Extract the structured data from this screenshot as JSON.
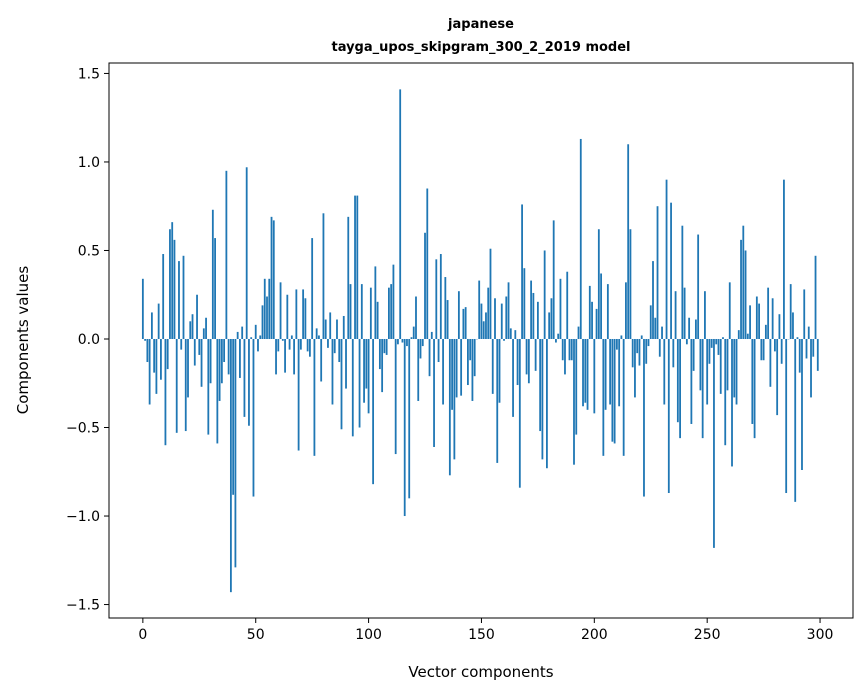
{
  "chart_data": {
    "type": "bar",
    "title": "japanese",
    "subtitle": "tayga_upos_skipgram_300_2_2019 model",
    "xlabel": "Vector components",
    "ylabel": "Components values",
    "xlim": [
      -15,
      314.6
    ],
    "ylim": [
      -1.576,
      1.559
    ],
    "xticks": [
      0,
      50,
      100,
      150,
      200,
      250,
      300
    ],
    "xtick_labels": [
      "0",
      "50",
      "100",
      "150",
      "200",
      "250",
      "300"
    ],
    "yticks": [
      -1.5,
      -1.0,
      -0.5,
      0.0,
      0.5,
      1.0,
      1.5
    ],
    "ytick_labels": [
      "−1.5",
      "−1.0",
      "−0.5",
      "0.0",
      "0.5",
      "1.0",
      "1.5"
    ],
    "grid": false,
    "bar_color": "#1f77b4",
    "values": [
      0.34,
      -0.01,
      -0.13,
      -0.37,
      0.15,
      -0.19,
      -0.31,
      0.2,
      -0.23,
      0.48,
      -0.6,
      -0.17,
      0.62,
      0.66,
      0.56,
      -0.53,
      0.44,
      -0.06,
      0.47,
      -0.52,
      -0.33,
      0.1,
      0.14,
      -0.15,
      0.25,
      -0.09,
      -0.27,
      0.06,
      0.12,
      -0.54,
      -0.25,
      0.73,
      0.57,
      -0.59,
      -0.35,
      -0.25,
      -0.13,
      0.95,
      -0.2,
      -1.43,
      -0.88,
      -1.29,
      0.04,
      -0.22,
      0.07,
      -0.44,
      0.97,
      -0.49,
      0.01,
      -0.89,
      0.08,
      -0.07,
      0.02,
      0.19,
      0.34,
      0.24,
      0.34,
      0.69,
      0.67,
      -0.2,
      -0.07,
      0.32,
      -0.01,
      -0.19,
      0.25,
      -0.06,
      0.02,
      -0.2,
      0.28,
      -0.63,
      -0.06,
      0.28,
      0.23,
      -0.07,
      -0.1,
      0.57,
      -0.66,
      0.06,
      0.02,
      -0.24,
      0.71,
      0.11,
      -0.05,
      0.15,
      -0.37,
      -0.08,
      0.11,
      -0.13,
      -0.51,
      0.13,
      -0.28,
      0.69,
      0.31,
      -0.55,
      0.81,
      0.81,
      -0.5,
      0.31,
      -0.36,
      -0.28,
      -0.42,
      0.29,
      -0.82,
      0.41,
      0.21,
      -0.17,
      -0.3,
      -0.08,
      -0.09,
      0.29,
      0.31,
      0.42,
      -0.65,
      -0.03,
      1.41,
      -0.02,
      -1.0,
      -0.04,
      -0.9,
      0.01,
      0.07,
      0.24,
      -0.35,
      -0.11,
      -0.04,
      0.6,
      0.85,
      -0.21,
      0.04,
      -0.61,
      0.45,
      -0.13,
      0.48,
      -0.37,
      0.35,
      0.22,
      -0.77,
      -0.4,
      -0.68,
      -0.33,
      0.27,
      -0.32,
      0.17,
      0.18,
      -0.26,
      -0.12,
      -0.35,
      -0.21,
      0.0,
      0.33,
      0.2,
      0.1,
      0.15,
      0.29,
      0.51,
      -0.31,
      0.23,
      -0.7,
      -0.36,
      0.2,
      -0.01,
      0.24,
      0.32,
      0.06,
      -0.44,
      0.05,
      -0.26,
      -0.84,
      0.76,
      0.4,
      -0.2,
      -0.25,
      0.33,
      0.26,
      -0.18,
      0.21,
      -0.52,
      -0.68,
      0.5,
      -0.73,
      0.15,
      0.23,
      0.67,
      -0.02,
      0.03,
      0.34,
      -0.12,
      -0.2,
      0.38,
      -0.12,
      -0.12,
      -0.71,
      -0.54,
      0.07,
      1.13,
      -0.38,
      -0.36,
      -0.4,
      0.3,
      0.21,
      -0.42,
      0.17,
      0.62,
      0.37,
      -0.66,
      -0.4,
      0.31,
      -0.37,
      -0.58,
      -0.59,
      -0.06,
      -0.38,
      0.02,
      -0.66,
      0.32,
      1.1,
      0.62,
      -0.16,
      -0.33,
      -0.08,
      -0.15,
      0.02,
      -0.89,
      -0.14,
      -0.04,
      0.19,
      0.44,
      0.12,
      0.75,
      -0.1,
      0.07,
      -0.37,
      0.9,
      -0.87,
      0.77,
      -0.16,
      0.27,
      -0.47,
      -0.56,
      0.64,
      0.29,
      -0.03,
      0.12,
      -0.48,
      -0.18,
      0.11,
      0.59,
      -0.29,
      -0.56,
      0.27,
      -0.37,
      -0.14,
      -0.05,
      -1.18,
      -0.03,
      -0.09,
      -0.31,
      0.01,
      -0.6,
      -0.29,
      0.32,
      -0.72,
      -0.33,
      -0.37,
      0.05,
      0.56,
      0.64,
      0.5,
      0.03,
      0.19,
      -0.48,
      -0.56,
      0.24,
      0.2,
      -0.12,
      -0.12,
      0.08,
      0.29,
      -0.27,
      0.23,
      -0.07,
      -0.43,
      0.14,
      -0.14,
      0.9,
      -0.87,
      0.0,
      0.31,
      0.15,
      -0.92,
      0.01,
      -0.19,
      -0.74,
      0.28,
      -0.11,
      0.07,
      -0.33,
      -0.1,
      0.47,
      -0.18
    ]
  }
}
